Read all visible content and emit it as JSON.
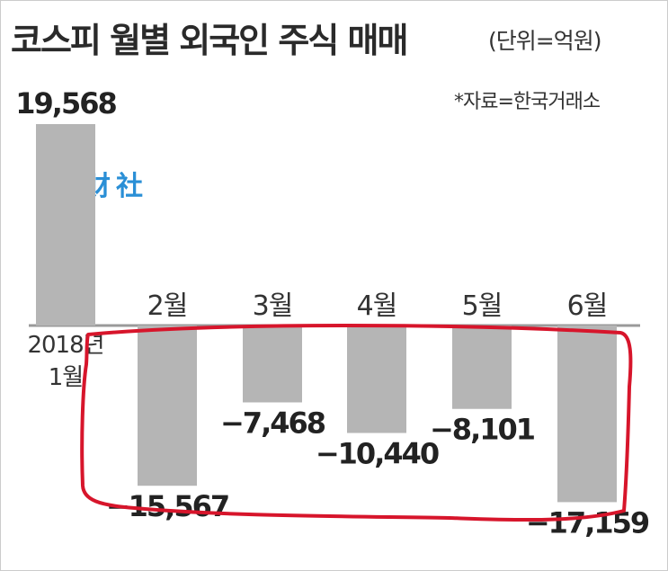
{
  "title": "코스피 월별 외국인 주식 매매",
  "unit": "(단위=억원)",
  "source": "*자료=한국거래소",
  "watermark": "韩财社",
  "chart_data": {
    "type": "bar",
    "categories": [
      [
        "2018년",
        "1월"
      ],
      [
        "2월"
      ],
      [
        "3월"
      ],
      [
        "4월"
      ],
      [
        "5월"
      ],
      [
        "6월"
      ]
    ],
    "values": [
      19568,
      -15567,
      -7468,
      -10440,
      -8101,
      -17159
    ],
    "value_labels": [
      "19,568",
      "−15,567",
      "−7,468",
      "−10,440",
      "−8,101",
      "−17,159"
    ],
    "colors": {
      "bar": "#b5b5b5",
      "highlight": "#d7152b",
      "text": "#222222"
    },
    "annotation": "hand-drawn red outline around Feb–Jun bars",
    "grid": false
  }
}
